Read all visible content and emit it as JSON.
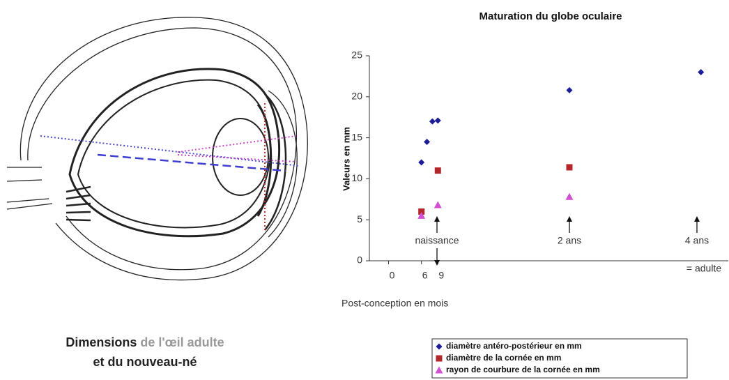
{
  "caption": {
    "bold": "Dimensions",
    "gray": "de l'œil adulte",
    "line2": "et du nouveau-né"
  },
  "chart_data": {
    "type": "scatter",
    "title": "Maturation du globe oculaire",
    "xlabel": "Post-conception en mois",
    "ylabel": "Valeurs en mm",
    "xlim": [
      -3.5,
      62
    ],
    "xticks": [
      0,
      6,
      9
    ],
    "ylim": [
      0,
      25
    ],
    "yticks": [
      0,
      5,
      10,
      15,
      20,
      25
    ],
    "annotations": [
      "naissance",
      "2 ans",
      "4 ans",
      "= adulte"
    ],
    "series": [
      {
        "name": "diamètre antéro-postérieur en mm",
        "color": "#1c1c96",
        "marker": "diamond",
        "x": [
          6,
          7,
          8,
          9,
          33,
          57
        ],
        "values": [
          12,
          14.5,
          17,
          17.1,
          20.8,
          23
        ]
      },
      {
        "name": "diamètre de la cornée en mm",
        "color": "#b3262a",
        "marker": "square",
        "x": [
          6,
          9,
          33
        ],
        "values": [
          6,
          11,
          11.4
        ]
      },
      {
        "name": "rayon de courbure de la cornée en mm",
        "color": "#d24fd2",
        "marker": "triangle",
        "x": [
          6,
          9,
          33
        ],
        "values": [
          5.5,
          6.8,
          7.8
        ]
      }
    ]
  }
}
